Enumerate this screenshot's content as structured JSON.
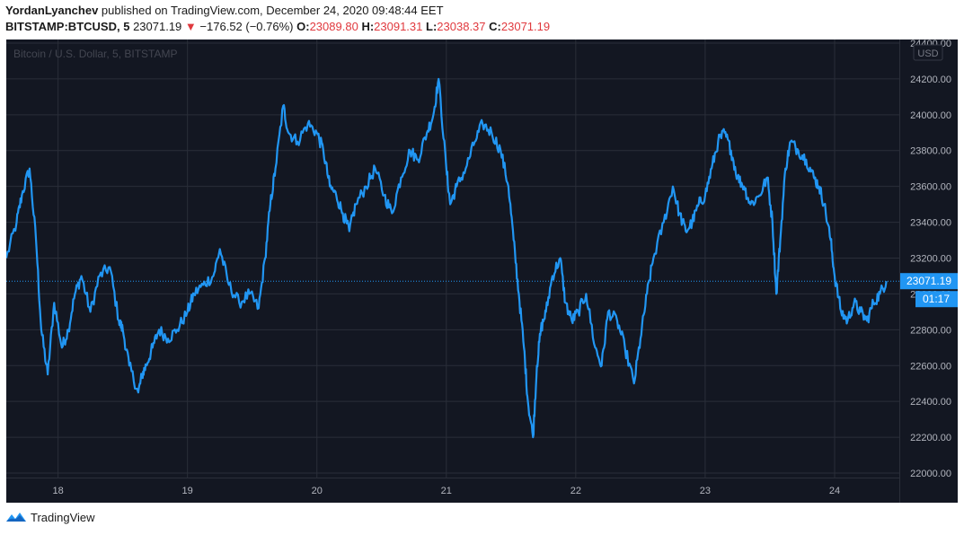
{
  "header": {
    "author": "YordanLyanchev",
    "published_text": " published on TradingView.com, December 24, 2020 09:48:44 EET"
  },
  "ticker": {
    "symbol": "BITSTAMP:BTCUSD, 5",
    "last": "23071.19",
    "change_arrow": "▼",
    "change": "−176.52 (−0.76%)",
    "o_label": "O:",
    "o_value": "23089.80",
    "h_label": "H:",
    "h_value": "23091.31",
    "l_label": "L:",
    "l_value": "23038.37",
    "c_label": "C:",
    "c_value": "23071.19"
  },
  "footer": {
    "brand": "TradingView"
  },
  "colors": {
    "background": "#131722",
    "grid": "#2a2e39",
    "line": "#2196f3",
    "price_label_bg": "#2196f3",
    "axis_text": "#b2b5be",
    "down": "#e0393e"
  },
  "chart_data": {
    "type": "line",
    "title": "Bitcoin / U.S. Dollar, 5, BITSTAMP",
    "currency_label": "USD",
    "xlabel": "",
    "ylabel": "",
    "xlim": [
      17.6,
      24.5
    ],
    "ylim": [
      21975,
      24420
    ],
    "x_ticks": [
      18,
      19,
      20,
      21,
      22,
      23,
      24
    ],
    "x_tick_labels": [
      "18",
      "19",
      "20",
      "21",
      "22",
      "23",
      "24"
    ],
    "y_ticks": [
      22000,
      22200,
      22400,
      22600,
      22800,
      23000,
      23200,
      23400,
      23600,
      23800,
      24000,
      24200,
      24400
    ],
    "y_tick_labels": [
      "22000.00",
      "22200.00",
      "22400.00",
      "22600.00",
      "22800.00",
      "23000.00",
      "23200.00",
      "23400.00",
      "23600.00",
      "23800.00",
      "24000.00",
      "24200.00",
      "24400.00"
    ],
    "grid": true,
    "current_price": 23071.19,
    "current_price_label": "23071.19",
    "countdown_label": "01:17",
    "series": [
      {
        "x": [
          17.6,
          17.68,
          17.72,
          17.78,
          17.83,
          17.87,
          17.92,
          17.97,
          18.03,
          18.08,
          18.13,
          18.18,
          18.25,
          18.32,
          18.4,
          18.47,
          18.5,
          18.55,
          18.62,
          18.65,
          18.68,
          18.73,
          18.78,
          18.85,
          18.92,
          19.0,
          19.05,
          19.12,
          19.2,
          19.25,
          19.32,
          19.4,
          19.48,
          19.55,
          19.6,
          19.64,
          19.68,
          19.74,
          19.78,
          19.85,
          19.93,
          20.0,
          20.05,
          20.1,
          20.15,
          20.2,
          20.25,
          20.3,
          20.38,
          20.45,
          20.52,
          20.58,
          20.65,
          20.72,
          20.78,
          20.85,
          20.9,
          20.94,
          21.0,
          21.03,
          21.08,
          21.15,
          21.22,
          21.28,
          21.35,
          21.42,
          21.48,
          21.52,
          21.56,
          21.6,
          21.63,
          21.67,
          21.7,
          21.73,
          21.77,
          21.82,
          21.88,
          21.92,
          21.97,
          22.02,
          22.08,
          22.15,
          22.2,
          22.25,
          22.32,
          22.38,
          22.45,
          22.5,
          22.55,
          22.6,
          22.68,
          22.75,
          22.8,
          22.85,
          22.9,
          22.95,
          23.0,
          23.05,
          23.1,
          23.15,
          23.2,
          23.25,
          23.3,
          23.35,
          23.42,
          23.48,
          23.52,
          23.55,
          23.58,
          23.62,
          23.66,
          23.72,
          23.78,
          23.84,
          23.88,
          23.92,
          23.97,
          24.0,
          24.05,
          24.1,
          24.15,
          24.2,
          24.25,
          24.3,
          24.35,
          24.4
        ],
        "y": [
          23200,
          23400,
          23550,
          23700,
          23300,
          22800,
          22550,
          22950,
          22700,
          22800,
          23000,
          23100,
          22900,
          23100,
          23150,
          22850,
          22800,
          22600,
          22450,
          22550,
          22600,
          22700,
          22800,
          22750,
          22800,
          22900,
          23000,
          23050,
          23100,
          23250,
          23050,
          22950,
          23000,
          22920,
          23200,
          23500,
          23700,
          24050,
          23900,
          23850,
          23950,
          23900,
          23800,
          23600,
          23550,
          23450,
          23350,
          23500,
          23600,
          23700,
          23550,
          23450,
          23650,
          23800,
          23750,
          23900,
          24000,
          24200,
          23700,
          23500,
          23600,
          23700,
          23850,
          23950,
          23900,
          23800,
          23600,
          23300,
          23000,
          22700,
          22400,
          22200,
          22600,
          22800,
          22900,
          23100,
          23200,
          22950,
          22850,
          22900,
          23000,
          22700,
          22600,
          22900,
          22850,
          22700,
          22500,
          22750,
          23000,
          23200,
          23400,
          23600,
          23450,
          23350,
          23400,
          23500,
          23550,
          23700,
          23850,
          23900,
          23800,
          23650,
          23600,
          23500,
          23550,
          23650,
          23400,
          23000,
          23300,
          23700,
          23850,
          23800,
          23750,
          23650,
          23600,
          23500,
          23300,
          23100,
          22900,
          22850,
          22950,
          22900,
          22850,
          22950,
          23000,
          23071
        ]
      }
    ]
  }
}
